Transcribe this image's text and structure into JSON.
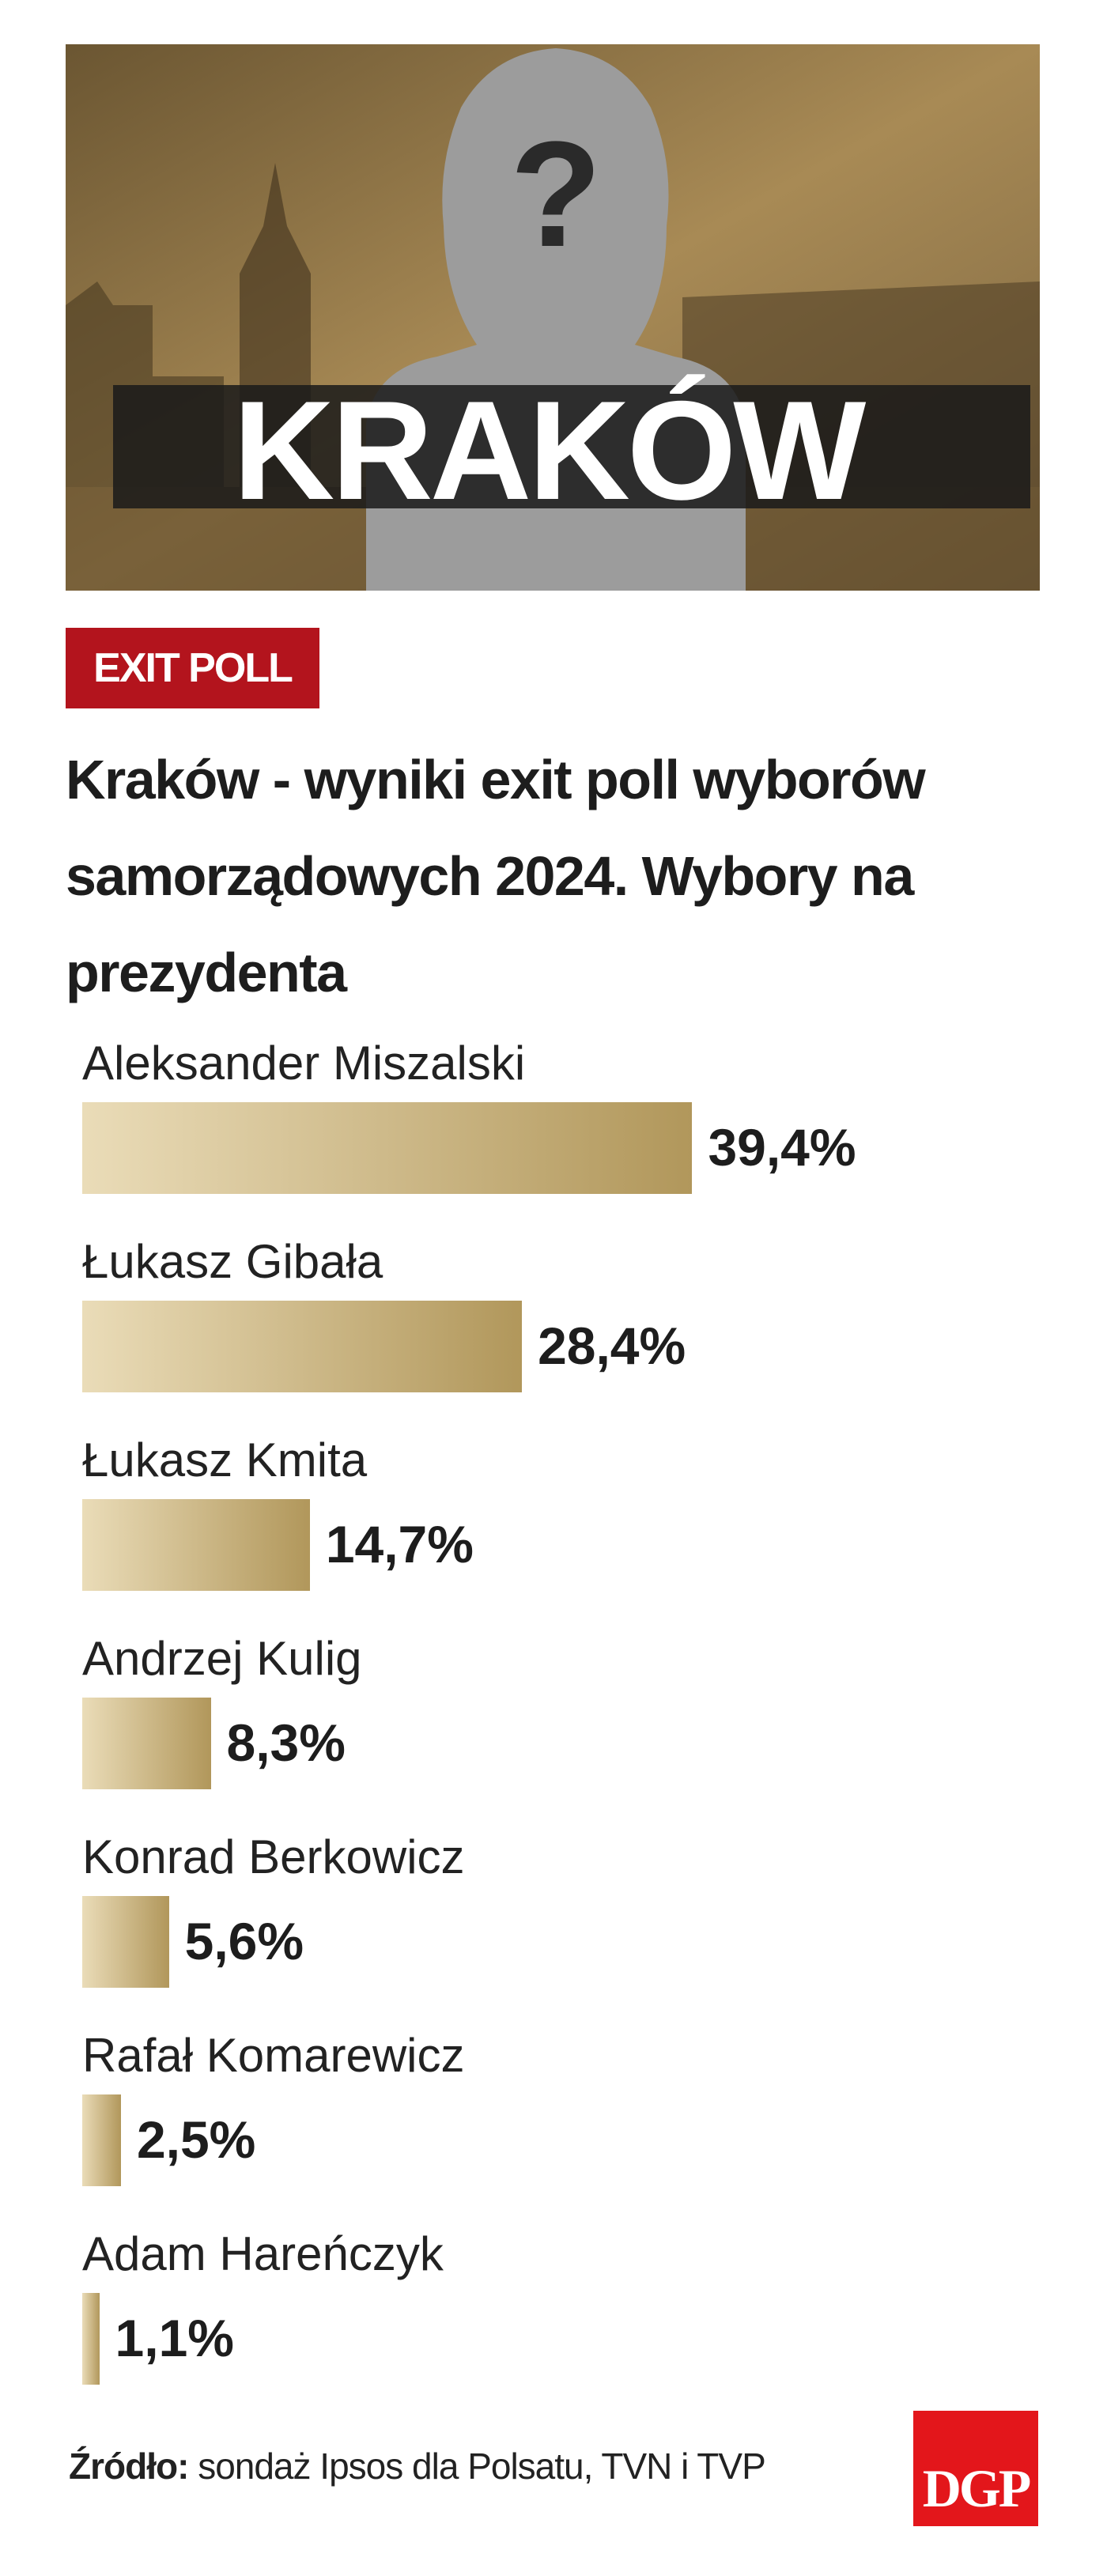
{
  "header": {
    "hero_label": "KRAKÓW",
    "hero_symbol": "?",
    "badge": "EXIT POLL",
    "title": "Kraków - wyniki exit poll wyborów samorządowych 2024. Wybory na prezydenta"
  },
  "chart_data": {
    "type": "bar",
    "orientation": "horizontal",
    "categories": [
      "Aleksander Miszalski",
      "Łukasz Gibała",
      "Łukasz Kmita",
      "Andrzej Kulig",
      "Konrad Berkowicz",
      "Rafał Komarewicz",
      "Adam Hareńczyk"
    ],
    "values": [
      39.4,
      28.4,
      14.7,
      8.3,
      5.6,
      2.5,
      1.1
    ],
    "value_labels": [
      "39,4%",
      "28,4%",
      "14,7%",
      "8,3%",
      "5,6%",
      "2,5%",
      "1,1%"
    ],
    "color": [
      "#eadcb8",
      "#b1975b"
    ]
  },
  "footer": {
    "source_label": "Źródło:",
    "source": "sondaż Ipsos dla Polsatu, TVN i TVP",
    "logo": "DGP"
  }
}
